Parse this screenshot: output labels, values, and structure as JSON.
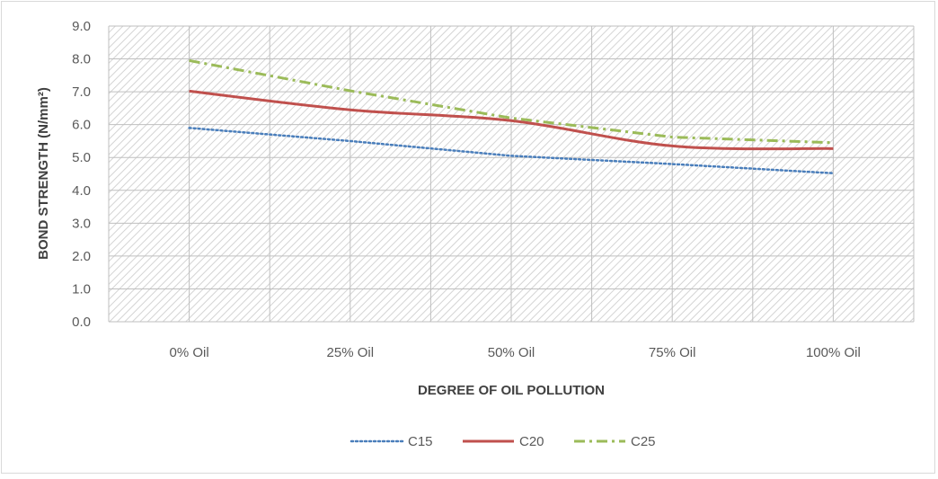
{
  "chart_data": {
    "type": "line",
    "title": "",
    "xlabel": "DEGREE OF OIL POLLUTION",
    "ylabel": "BOND STRENGTH  (N/mm²)",
    "categories": [
      "0% Oil",
      "25% Oil",
      "50% Oil",
      "75% Oil",
      "100% Oil"
    ],
    "ylim": [
      0,
      9
    ],
    "ytick_labels": [
      "0.0",
      "1.0",
      "2.0",
      "3.0",
      "4.0",
      "5.0",
      "6.0",
      "7.0",
      "8.0",
      "9.0"
    ],
    "grid": true,
    "legend_position": "bottom",
    "series": [
      {
        "name": "C15",
        "values": [
          5.9,
          5.5,
          5.05,
          4.8,
          4.52
        ],
        "color": "#4a7ebb",
        "dash": "dotted",
        "smooth": false
      },
      {
        "name": "C20",
        "values": [
          7.02,
          6.45,
          6.12,
          5.35,
          5.27
        ],
        "color": "#c0504d",
        "dash": "solid",
        "smooth": true
      },
      {
        "name": "C25",
        "values": [
          7.95,
          7.03,
          6.2,
          5.62,
          5.45
        ],
        "color": "#9bbb59",
        "dash": "dash-dot",
        "smooth": false
      }
    ]
  }
}
